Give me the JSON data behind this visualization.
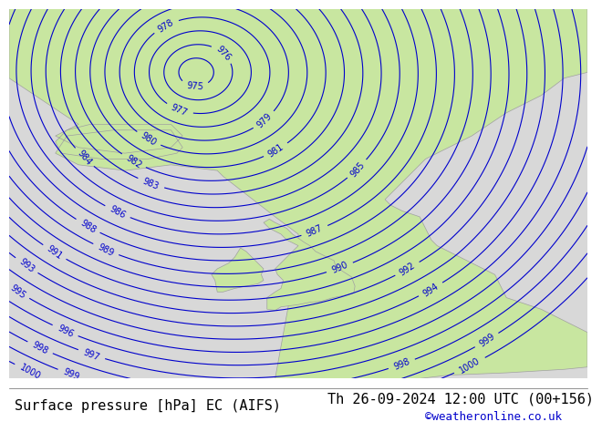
{
  "title_left": "Surface pressure [hPa] EC (AIFS)",
  "title_right": "Th 26-09-2024 12:00 UTC (00+156)",
  "credit": "©weatheronline.co.uk",
  "bg_ocean": "#d8d8d8",
  "bg_land": "#c8e6a0",
  "contour_color": "#0000cc",
  "contour_label_color": "#0000cc",
  "coast_color": "#a0a0a0",
  "pressure_min": 974,
  "pressure_max": 1000,
  "pressure_step": 1,
  "title_fontsize": 11,
  "credit_fontsize": 9,
  "label_fontsize": 7,
  "bottom_bar_color": "#ffffff",
  "text_color": "#000000"
}
